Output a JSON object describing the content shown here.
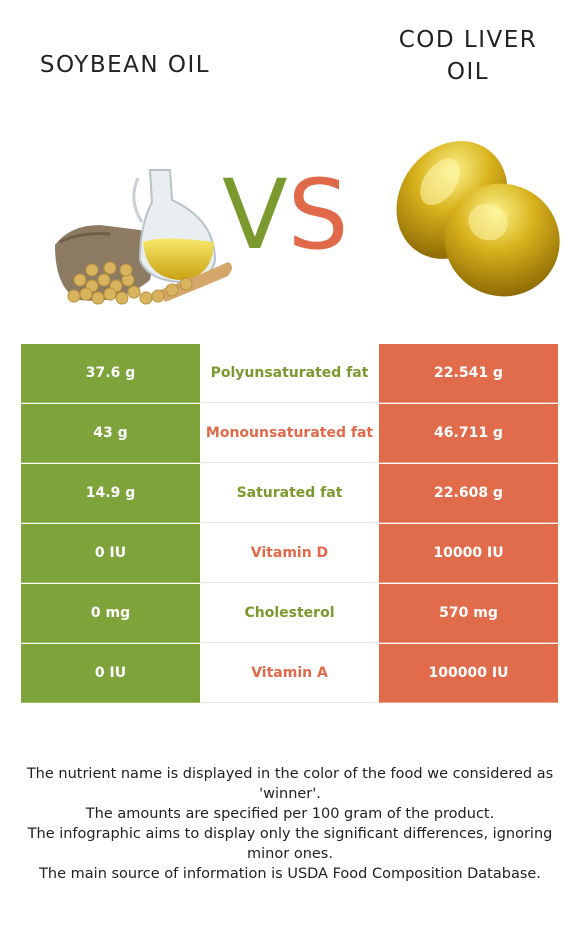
{
  "titles": {
    "left": "SOYBEAN OIL",
    "right_line1": "COD LIVER",
    "right_line2": "OIL"
  },
  "vs": {
    "v": "V",
    "s": "S"
  },
  "colors": {
    "left": "#7ea33a",
    "right": "#e16c4c"
  },
  "rows": [
    {
      "left": "37.6 g",
      "nutrient": "Polyunsaturated fat",
      "right": "22.541 g",
      "winner": "left"
    },
    {
      "left": "43 g",
      "nutrient": "Monounsaturated fat",
      "right": "46.711 g",
      "winner": "right"
    },
    {
      "left": "14.9 g",
      "nutrient": "Saturated fat",
      "right": "22.608 g",
      "winner": "left"
    },
    {
      "left": "0 IU",
      "nutrient": "Vitamin D",
      "right": "10000 IU",
      "winner": "right"
    },
    {
      "left": "0 mg",
      "nutrient": "Cholesterol",
      "right": "570 mg",
      "winner": "left"
    },
    {
      "left": "0 IU",
      "nutrient": "Vitamin A",
      "right": "100000 IU",
      "winner": "right"
    }
  ],
  "footer": [
    "The nutrient name is displayed in the color of the food we considered as 'winner'.",
    "The amounts are specified per 100 gram of the product.",
    "The infographic aims to display only the significant differences, ignoring minor ones.",
    "The main source of information is USDA Food Composition Database."
  ]
}
